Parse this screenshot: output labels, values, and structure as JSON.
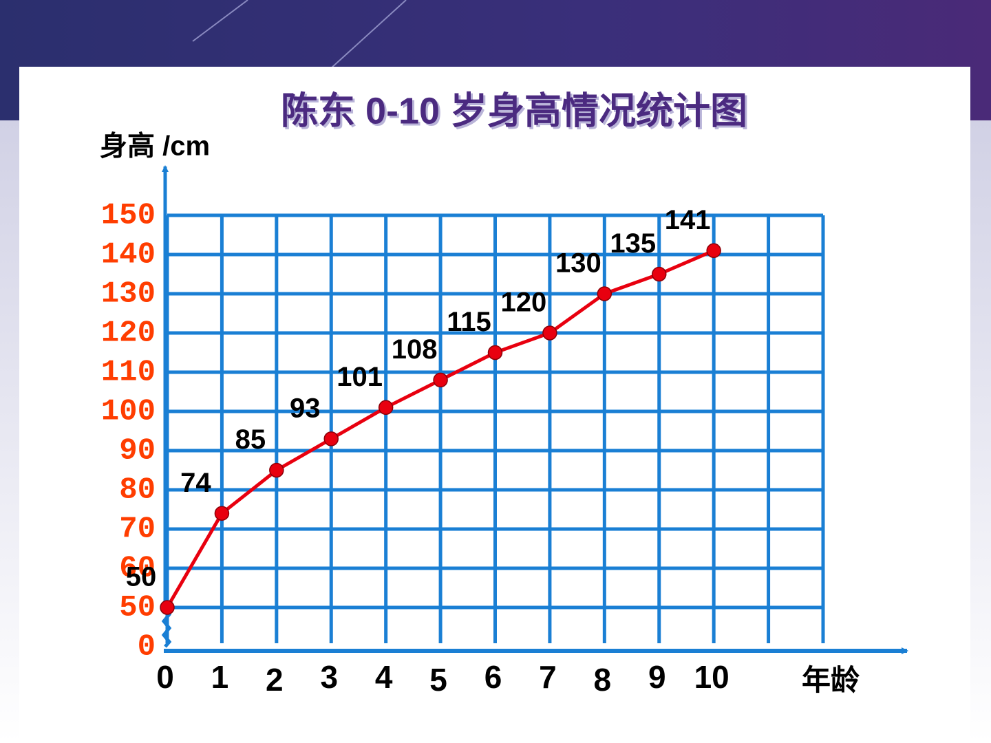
{
  "chart_data": {
    "type": "line",
    "title": "陈东 0-10 岁身高情况统计图",
    "y_label": "身高 /cm",
    "x_label": "年龄",
    "x": [
      0,
      1,
      2,
      3,
      4,
      5,
      6,
      7,
      8,
      9,
      10
    ],
    "series": [
      {
        "name": "身高",
        "color": "#e8000f",
        "values": [
          50,
          74,
          85,
          93,
          101,
          108,
          115,
          120,
          130,
          135,
          141
        ]
      }
    ],
    "xlim": [
      0,
      12
    ],
    "xticks": [
      0,
      1,
      2,
      3,
      4,
      5,
      6,
      7,
      8,
      9,
      10
    ],
    "ylim": [
      0,
      150
    ],
    "yticks": [
      0,
      50,
      60,
      70,
      80,
      90,
      100,
      110,
      120,
      130,
      140,
      150
    ],
    "y_axis_break": true,
    "grid": true,
    "grid_color": "#1a7fd4",
    "tick_label_color": "#ff3d00"
  }
}
